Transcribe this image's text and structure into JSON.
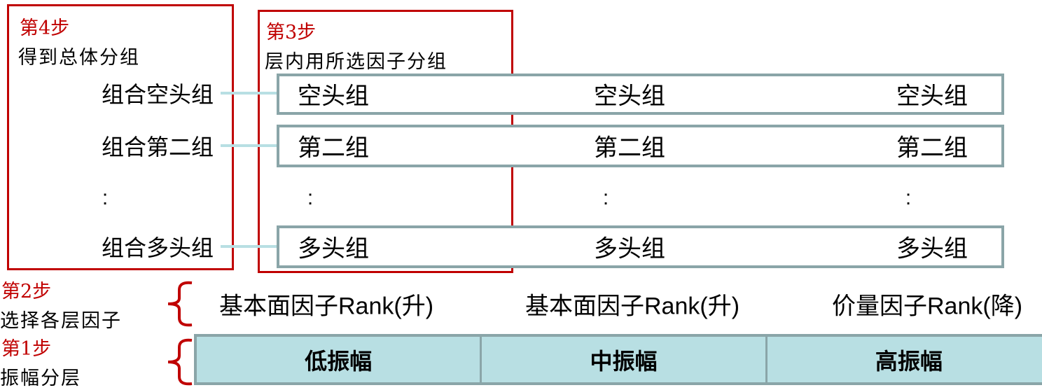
{
  "colors": {
    "step_red": "#c00000",
    "box_border": "#8aa5a8",
    "layer_fill": "#b8dfe3"
  },
  "step4": {
    "label": "第4步",
    "desc": "得到总体分组",
    "groups": [
      "组合空头组",
      "组合第二组",
      ":",
      "组合多头组"
    ]
  },
  "step3": {
    "label": "第3步",
    "desc": "层内用所选因子分组"
  },
  "rows": [
    {
      "cells": [
        "空头组",
        "空头组",
        "空头组"
      ]
    },
    {
      "cells": [
        "第二组",
        "第二组",
        "第二组"
      ]
    },
    {
      "cells": [
        "多头组",
        "多头组",
        "多头组"
      ]
    }
  ],
  "ellipsis": [
    ":",
    ":",
    ":"
  ],
  "step2": {
    "label": "第2步",
    "desc": "选择各层因子",
    "factors": [
      "基本面因子Rank(升)",
      "基本面因子Rank(升)",
      "价量因子Rank(降)"
    ]
  },
  "step1": {
    "label": "第1步",
    "desc": "振幅分层",
    "layers": [
      "低振幅",
      "中振幅",
      "高振幅"
    ]
  }
}
